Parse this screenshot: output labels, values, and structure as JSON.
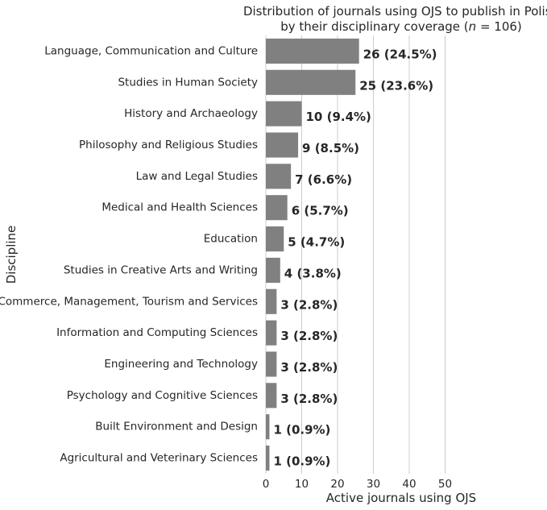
{
  "chart_data": {
    "type": "bar",
    "orientation": "horizontal",
    "title_line1": "Distribution of journals using OJS to publish in Polish",
    "title_line2_prefix": "by their disciplinary coverage (",
    "title_line2_italic": "n",
    "title_line2_suffix": " = 106)",
    "xlabel": "Active journals using OJS",
    "ylabel": "Discipline",
    "xlim": [
      0,
      60
    ],
    "xticks": [
      0,
      10,
      20,
      30,
      40,
      50
    ],
    "grid": "vertical",
    "bar_color": "#808080",
    "categories": [
      "Language, Communication and Culture",
      "Studies in Human Society",
      "History and Archaeology",
      "Philosophy and Religious Studies",
      "Law and Legal Studies",
      "Medical and Health Sciences",
      "Education",
      "Studies in Creative Arts and Writing",
      "Commerce, Management, Tourism and Services",
      "Information and Computing Sciences",
      "Engineering and Technology",
      "Psychology and Cognitive Sciences",
      "Built Environment and Design",
      "Agricultural and Veterinary Sciences"
    ],
    "values": [
      26,
      25,
      10,
      9,
      7,
      6,
      5,
      4,
      3,
      3,
      3,
      3,
      1,
      1
    ],
    "data_labels": [
      "26 (24.5%)",
      "25 (23.6%)",
      "10 (9.4%)",
      "9 (8.5%)",
      "7 (6.6%)",
      "6 (5.7%)",
      "5 (4.7%)",
      "4 (3.8%)",
      "3 (2.8%)",
      "3 (2.8%)",
      "3 (2.8%)",
      "3 (2.8%)",
      "1 (0.9%)",
      "1 (0.9%)"
    ]
  }
}
